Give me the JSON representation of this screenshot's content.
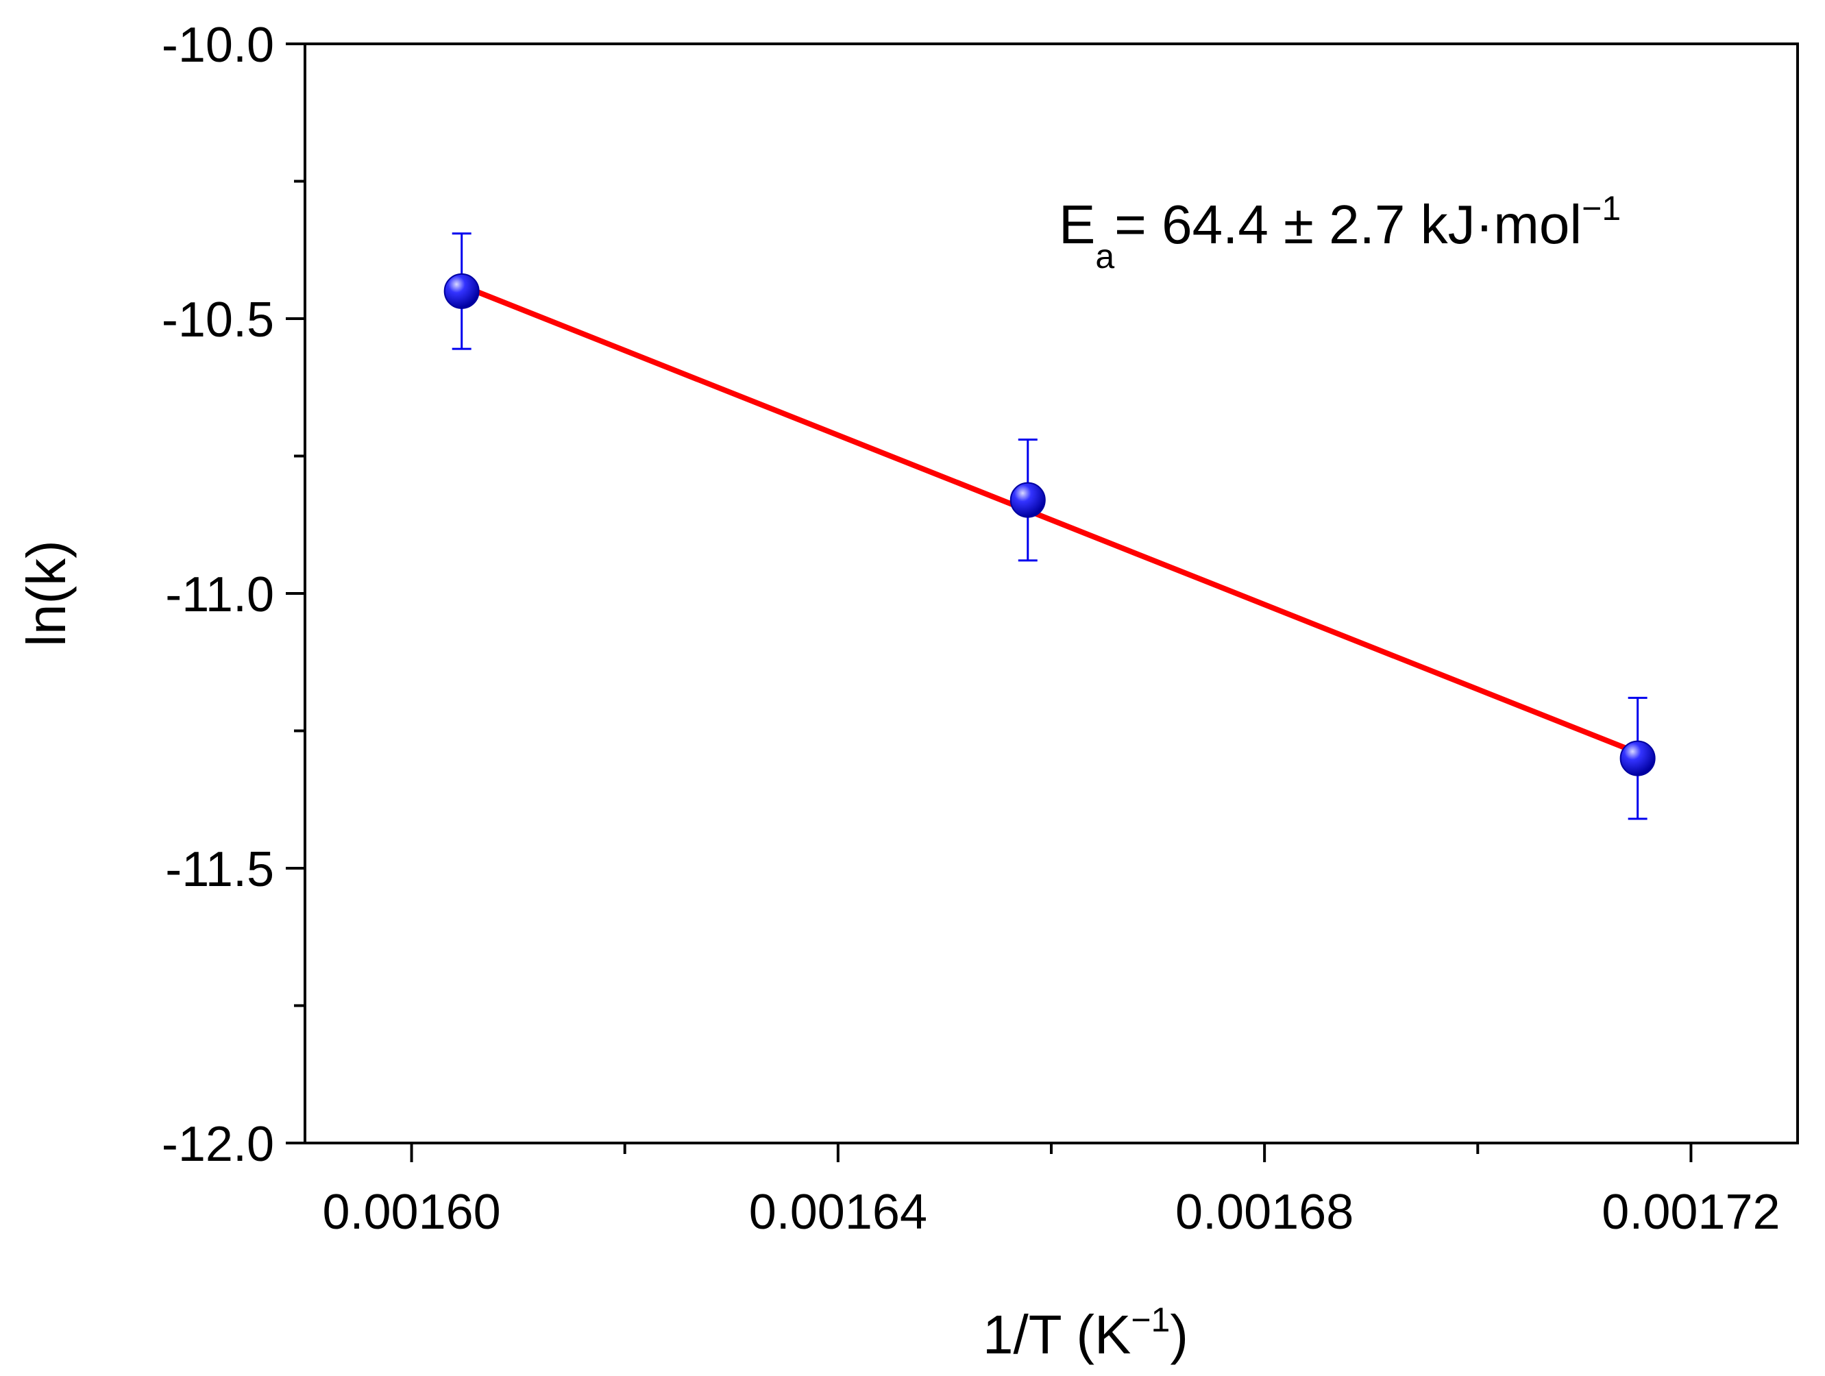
{
  "chart_data": {
    "type": "scatter",
    "title": "",
    "xlabel": {
      "main": "1/T (K",
      "sup": "−1",
      "close": ")"
    },
    "ylabel": "ln(k)",
    "xlim": [
      0.00159,
      0.00173
    ],
    "ylim": [
      -12.0,
      -10.0
    ],
    "x_ticks": [
      0.0016,
      0.00164,
      0.00168,
      0.00172
    ],
    "x_tick_labels": [
      "0.00160",
      "0.00164",
      "0.00168",
      "0.00172"
    ],
    "x_minor_ticks": [
      0.00162,
      0.00166,
      0.0017
    ],
    "y_ticks": [
      -10.0,
      -10.5,
      -11.0,
      -11.5,
      -12.0
    ],
    "y_tick_labels": [
      "-10.0",
      "-10.5",
      "-11.0",
      "-11.5",
      "-12.0"
    ],
    "y_minor_ticks": [
      -10.25,
      -10.75,
      -11.25,
      -11.75
    ],
    "series": [
      {
        "name": "ln(k)",
        "x": [
          0.0016047,
          0.0016578,
          0.001715
        ],
        "y": [
          -10.45,
          -10.83,
          -11.3
        ],
        "yerr": [
          0.105,
          0.11,
          0.11
        ],
        "color": "#0000ee"
      }
    ],
    "fit": {
      "name": "linear fit",
      "x": [
        0.0016047,
        0.001715
      ],
      "y": [
        -10.44,
        -11.29
      ],
      "color": "#ff0000"
    },
    "annotation": {
      "prefix": "E",
      "subscript": "a",
      "text": "= 64.4 ± 2.7 kJ·mol",
      "superscript": "−1"
    }
  }
}
